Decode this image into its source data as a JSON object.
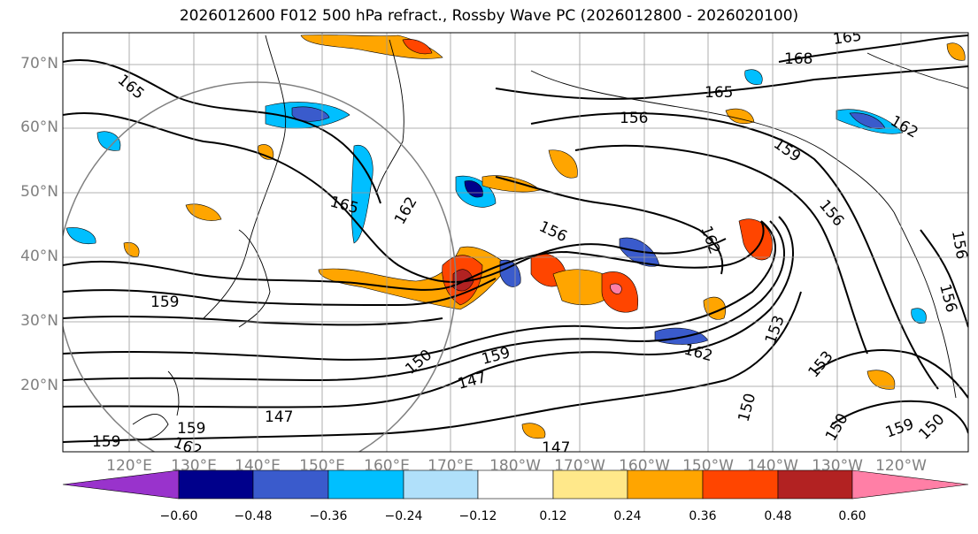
{
  "title": "2026012600 F012 500 hPa refract., Rossby Wave PC (2026012800 - 2026020100)",
  "lat_labels": [
    "70°N",
    "60°N",
    "50°N",
    "40°N",
    "30°N",
    "20°N"
  ],
  "lon_labels": [
    "120°E",
    "130°E",
    "140°E",
    "150°E",
    "160°E",
    "170°E",
    "180°W",
    "170°W",
    "160°W",
    "150°W",
    "140°W",
    "130°W",
    "120°W"
  ],
  "colorbar": {
    "tick_labels": [
      "−0.60",
      "−0.48",
      "−0.36",
      "−0.24",
      "−0.12",
      "0.12",
      "0.24",
      "0.36",
      "0.48",
      "0.60"
    ],
    "colors": [
      "#9933cc",
      "#00008b",
      "#3a5bcc",
      "#00bfff",
      "#b0e0fa",
      "#ffffff",
      "#ffe88a",
      "#ffa500",
      "#ff4500",
      "#b22222",
      "#ff7fa6"
    ]
  },
  "contour_labels": [
    "165",
    "168",
    "165",
    "165",
    "156",
    "162",
    "159",
    "156",
    "165",
    "162",
    "156",
    "162",
    "159",
    "153",
    "150",
    "159",
    "147",
    "162",
    "153",
    "150",
    "147",
    "156",
    "150",
    "159",
    "147",
    "159",
    "162",
    "159",
    "156",
    "150"
  ]
}
